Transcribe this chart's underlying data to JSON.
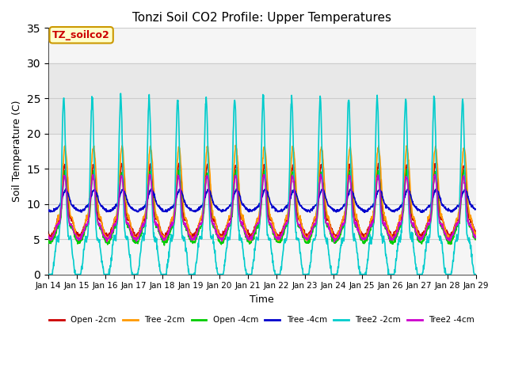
{
  "title": "Tonzi Soil CO2 Profile: Upper Temperatures",
  "xlabel": "Time",
  "ylabel": "Soil Temperature (C)",
  "ylim": [
    0,
    35
  ],
  "yticks": [
    0,
    5,
    10,
    15,
    20,
    25,
    30,
    35
  ],
  "x_tick_labels": [
    "Jan 14",
    "Jan 15",
    "Jan 16",
    "Jan 17",
    "Jan 18",
    "Jan 19",
    "Jan 20",
    "Jan 21",
    "Jan 22",
    "Jan 23",
    "Jan 24",
    "Jan 25",
    "Jan 26",
    "Jan 27",
    "Jan 28",
    "Jan 29"
  ],
  "series": [
    {
      "label": "Open -2cm",
      "color": "#cc0000",
      "lw": 1.2
    },
    {
      "label": "Tree -2cm",
      "color": "#ff9900",
      "lw": 1.2
    },
    {
      "label": "Open -4cm",
      "color": "#00cc00",
      "lw": 1.2
    },
    {
      "label": "Tree -4cm",
      "color": "#0000cc",
      "lw": 1.2
    },
    {
      "label": "Tree2 -2cm",
      "color": "#00cccc",
      "lw": 1.2
    },
    {
      "label": "Tree2 -4cm",
      "color": "#cc00cc",
      "lw": 1.2
    }
  ],
  "annotation_text": "TZ_soilco2",
  "annotation_color": "#cc0000",
  "annotation_bg": "#ffffcc",
  "annotation_border": "#cc9900",
  "shaded_bands": [
    {
      "ymin": 20,
      "ymax": 30,
      "color": "#e8e8e8"
    },
    {
      "ymin": 10,
      "ymax": 20,
      "color": "#f0f0f0"
    }
  ],
  "plot_bg": "#f5f5f5",
  "fig_bg": "#ffffff",
  "grid_color": "#cccccc"
}
